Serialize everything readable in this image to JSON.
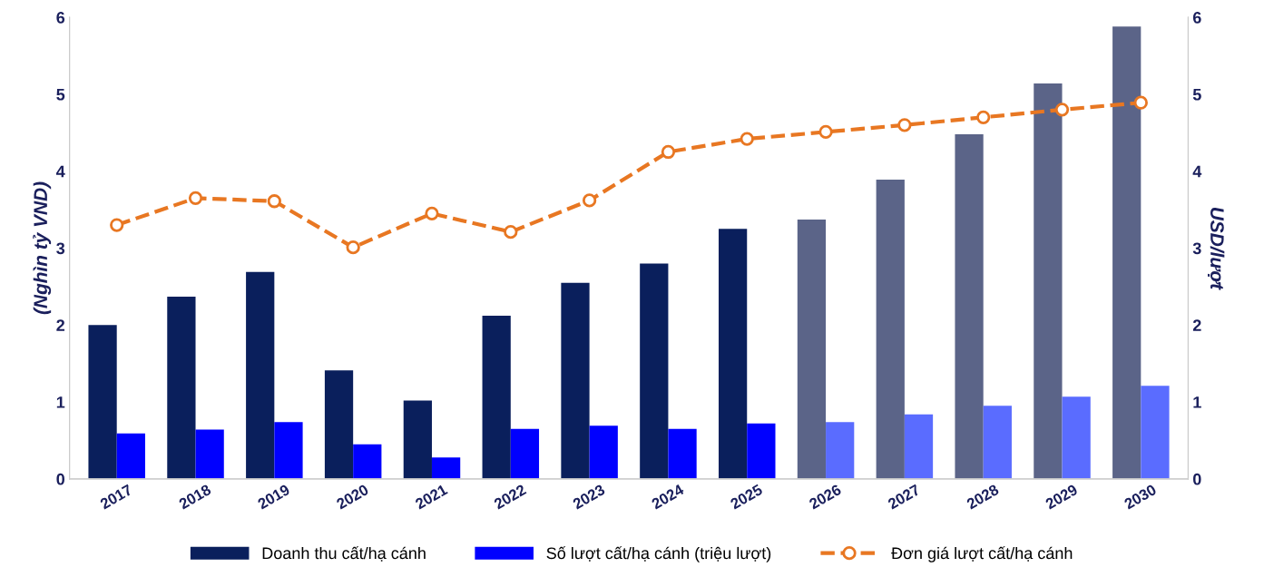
{
  "chart_data": {
    "type": "bar",
    "categories": [
      "2017",
      "2018",
      "2019",
      "2020",
      "2021",
      "2022",
      "2023",
      "2024",
      "2025",
      "2026",
      "2027",
      "2028",
      "2029",
      "2030"
    ],
    "ylabel": "(Nghìn tỷ VND)",
    "y2label": "USD/lượt",
    "ylim": [
      0,
      6
    ],
    "yticks": [
      0,
      1,
      2,
      3,
      4,
      5,
      6
    ],
    "y2lim": [
      0,
      6
    ],
    "y2ticks": [
      0,
      1,
      2,
      3,
      4,
      5,
      6
    ],
    "grid": false,
    "legend": "bottom",
    "marker": "circle",
    "line_style": "dashed",
    "series": [
      {
        "name": "Doanh thu cất/hạ cánh",
        "color": "#0a1f5c",
        "colors": [
          "#0a1f5c",
          "#0a1f5c",
          "#0a1f5c",
          "#0a1f5c",
          "#0a1f5c",
          "#0a1f5c",
          "#0a1f5c",
          "#0a1f5c",
          "#0a1f5c",
          "#5b6488",
          "#5b6488",
          "#5b6488",
          "#5b6488",
          "#5b6488"
        ],
        "values": [
          2.0,
          2.37,
          2.69,
          1.41,
          1.02,
          2.12,
          2.55,
          2.8,
          3.25,
          3.37,
          3.89,
          4.48,
          5.14,
          5.88
        ]
      },
      {
        "name": "Số lượt cất/hạ cánh (triệu lượt)",
        "color": "#0000ff",
        "colors": [
          "#0000ff",
          "#0000ff",
          "#0000ff",
          "#0000ff",
          "#0000ff",
          "#0000ff",
          "#0000ff",
          "#0000ff",
          "#0000ff",
          "#5a6cff",
          "#5a6cff",
          "#5a6cff",
          "#5a6cff",
          "#5a6cff"
        ],
        "values": [
          0.59,
          0.64,
          0.74,
          0.45,
          0.28,
          0.65,
          0.69,
          0.65,
          0.72,
          0.74,
          0.84,
          0.95,
          1.07,
          1.21
        ]
      },
      {
        "name": "Đơn giá lượt cất/hạ cánh",
        "type": "line",
        "axis": "y2",
        "color": "#e87722",
        "values": [
          3.3,
          3.65,
          3.61,
          3.01,
          3.45,
          3.21,
          3.62,
          4.25,
          4.42,
          4.51,
          4.6,
          4.7,
          4.8,
          4.89
        ]
      }
    ]
  }
}
